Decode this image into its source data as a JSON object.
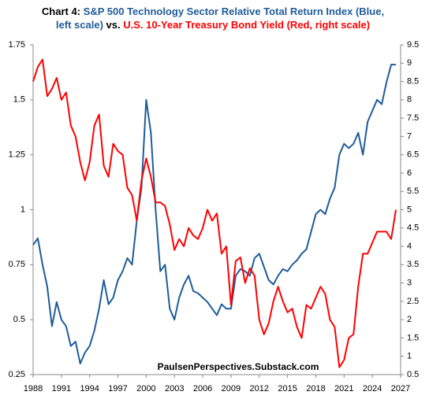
{
  "chart_data": {
    "type": "line",
    "title": [
      "Chart 4:",
      "S&P 500 Technology Sector Relative Total Return Index (Blue, left scale)",
      "vs.",
      "U.S. 10-Year Treasury Bond Yield (Red, right scale)"
    ],
    "title_colors": [
      "#000000",
      "#1f5c99",
      "#000000",
      "#ff0000"
    ],
    "annotation": "PaulsenPerspectives.Substack.com",
    "x": [
      1988,
      1988.5,
      1989,
      1989.5,
      1990,
      1990.5,
      1991,
      1991.5,
      1992,
      1992.5,
      1993,
      1993.5,
      1994,
      1994.5,
      1995,
      1995.5,
      1996,
      1996.5,
      1997,
      1997.5,
      1998,
      1998.5,
      1999,
      1999.5,
      2000,
      2000.5,
      2001,
      2001.5,
      2002,
      2002.5,
      2003,
      2003.5,
      2004,
      2004.5,
      2005,
      2005.5,
      2006,
      2006.5,
      2007,
      2007.5,
      2008,
      2008.5,
      2009,
      2009.5,
      2010,
      2010.5,
      2011,
      2011.5,
      2012,
      2012.5,
      2013,
      2013.5,
      2014,
      2014.5,
      2015,
      2015.5,
      2016,
      2016.5,
      2017,
      2017.5,
      2018,
      2018.5,
      2019,
      2019.5,
      2020,
      2020.5,
      2021,
      2021.5,
      2022,
      2022.5,
      2023,
      2023.5,
      2024,
      2024.5,
      2025,
      2025.5,
      2026,
      2026.5
    ],
    "series": [
      {
        "name": "S&P 500 Technology Sector Relative Total Return Index",
        "color": "#1f5c99",
        "axis": "y",
        "values": [
          0.84,
          0.87,
          0.75,
          0.65,
          0.47,
          0.58,
          0.5,
          0.47,
          0.38,
          0.4,
          0.3,
          0.35,
          0.38,
          0.45,
          0.55,
          0.68,
          0.57,
          0.6,
          0.68,
          0.72,
          0.78,
          0.75,
          0.95,
          1.1,
          1.5,
          1.35,
          1.0,
          0.72,
          0.75,
          0.55,
          0.5,
          0.6,
          0.66,
          0.7,
          0.63,
          0.62,
          0.6,
          0.58,
          0.55,
          0.52,
          0.57,
          0.55,
          0.55,
          0.7,
          0.73,
          0.72,
          0.7,
          0.78,
          0.8,
          0.74,
          0.68,
          0.66,
          0.7,
          0.73,
          0.72,
          0.75,
          0.77,
          0.8,
          0.82,
          0.9,
          0.98,
          1.0,
          0.98,
          1.05,
          1.1,
          1.25,
          1.3,
          1.28,
          1.3,
          1.35,
          1.25,
          1.4,
          1.45,
          1.5,
          1.48,
          1.58,
          1.66,
          1.66
        ]
      },
      {
        "name": "U.S. 10-Year Treasury Bond Yield",
        "color": "#ff0000",
        "axis": "y2",
        "values": [
          8.5,
          8.9,
          9.1,
          8.1,
          8.3,
          8.6,
          8.0,
          8.2,
          7.3,
          7.0,
          6.3,
          5.8,
          6.3,
          7.3,
          7.6,
          6.2,
          5.9,
          6.8,
          6.6,
          6.5,
          5.6,
          5.4,
          4.7,
          5.8,
          6.4,
          5.9,
          5.2,
          5.2,
          5.1,
          4.6,
          3.9,
          4.2,
          4.0,
          4.5,
          4.3,
          4.2,
          4.5,
          5.0,
          4.7,
          4.9,
          3.8,
          4.0,
          2.4,
          3.6,
          3.7,
          3.0,
          3.4,
          3.2,
          2.0,
          1.6,
          1.9,
          2.5,
          2.9,
          2.5,
          2.2,
          2.3,
          1.8,
          1.5,
          2.4,
          2.3,
          2.6,
          2.9,
          2.7,
          2.0,
          1.8,
          0.7,
          0.9,
          1.5,
          1.6,
          2.9,
          3.8,
          3.8,
          4.1,
          4.4,
          4.4,
          4.4,
          4.2,
          5.0
        ]
      }
    ],
    "xlim": [
      1988,
      2027
    ],
    "xticks": [
      1988,
      1991,
      1994,
      1997,
      2000,
      2003,
      2006,
      2009,
      2012,
      2015,
      2018,
      2021,
      2024,
      2027
    ],
    "ylim": [
      0.25,
      1.75
    ],
    "yticks": [
      0.25,
      0.5,
      0.75,
      1,
      1.25,
      1.5,
      1.75
    ],
    "y2lim": [
      0.5,
      9.5
    ],
    "y2ticks": [
      0.5,
      1,
      1.5,
      2,
      2.5,
      3,
      3.5,
      4,
      4.5,
      5,
      5.5,
      6,
      6.5,
      7,
      7.5,
      8,
      8.5,
      9,
      9.5
    ],
    "grid": false
  }
}
